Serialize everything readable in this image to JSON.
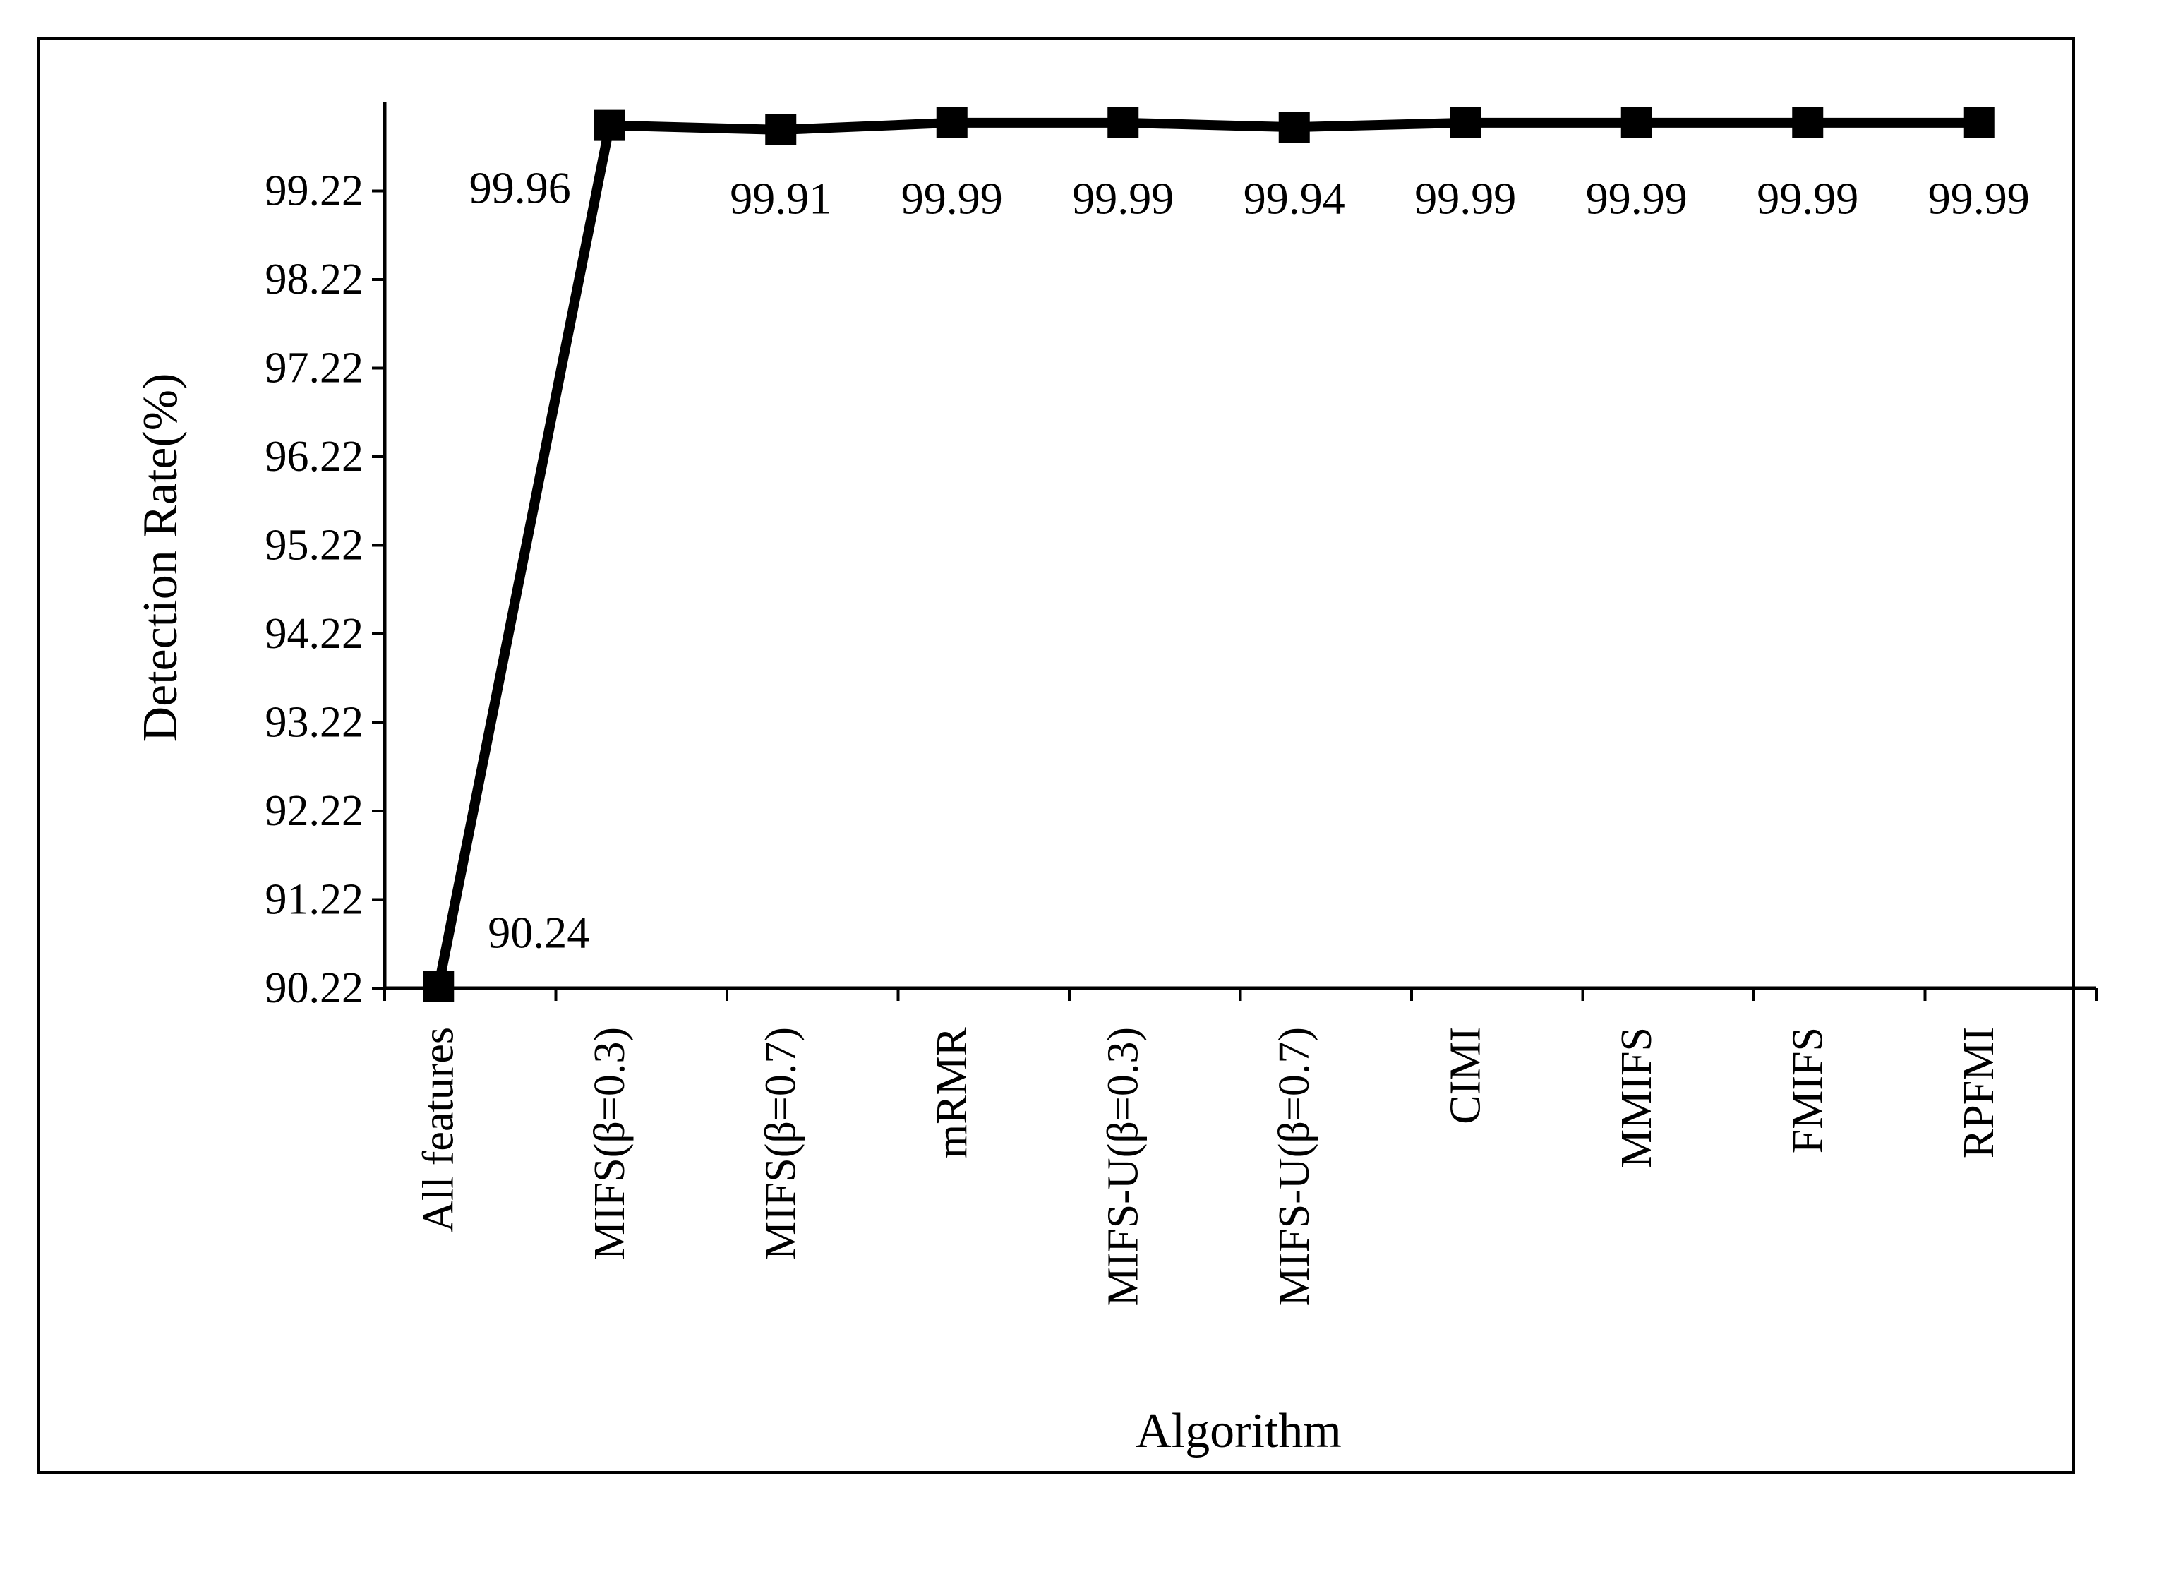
{
  "chart_data": {
    "type": "line",
    "title": "",
    "xlabel": "Algorithm",
    "ylabel": "Detection Rate(%)",
    "categories": [
      "All features",
      "MIFS(β=0.3)",
      "MIFS(β=0.7)",
      "mRMR",
      "MIFS-U(β=0.3)",
      "MIFS-U(β=0.7)",
      "CIMI",
      "MMIFS",
      "FMIFS",
      "RPFMI"
    ],
    "values": [
      90.24,
      99.96,
      99.91,
      99.99,
      99.99,
      99.94,
      99.99,
      99.99,
      99.99,
      99.99
    ],
    "data_labels": [
      "90.24",
      "99.96",
      "99.91",
      "99.99",
      "99.99",
      "99.94",
      "99.99",
      "99.99",
      "99.99",
      "99.99"
    ],
    "yticks": [
      "90.22",
      "91.22",
      "92.22",
      "93.22",
      "94.22",
      "95.22",
      "96.22",
      "97.22",
      "98.22",
      "99.22"
    ],
    "ylim": [
      90.22,
      100.22
    ],
    "grid": false,
    "legend": "none",
    "line_color": "#000000",
    "marker": "square"
  }
}
